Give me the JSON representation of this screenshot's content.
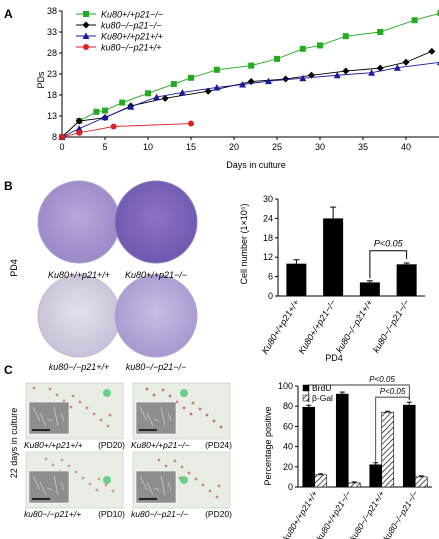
{
  "panels": {
    "A": {
      "letter": "A",
      "chart_data": {
        "type": "line",
        "xlabel": "Days in culture",
        "ylabel": "PDs",
        "xlim": [
          0,
          45
        ],
        "ylim": [
          8,
          38
        ],
        "xticks": [
          "0",
          "5",
          "10",
          "15",
          "20",
          "25",
          "30",
          "35",
          "40",
          "45"
        ],
        "yticks": [
          "8",
          "13",
          "18",
          "23",
          "28",
          "33",
          "38"
        ],
        "legend_position": "top-left",
        "series": [
          {
            "name": "Ku80+/+p21−/−",
            "color": "#22aa22",
            "marker": "square",
            "x": [
              0,
              2,
              4,
              5,
              7,
              10,
              13,
              15,
              18,
              22,
              25,
              28,
              30,
              33,
              37,
              41,
              44
            ],
            "y": [
              8,
              11.8,
              14,
              14.3,
              16.2,
              18.4,
              20.6,
              22.1,
              24,
              25,
              26.6,
              29,
              29.8,
              32,
              33,
              35.8,
              37.5
            ]
          },
          {
            "name": "ku80−/−p21−/−",
            "color": "#000000",
            "marker": "diamond",
            "x": [
              0,
              2,
              5,
              8,
              12,
              17,
              22,
              26,
              29,
              33,
              37,
              40,
              43
            ],
            "y": [
              8,
              11.8,
              12.6,
              15.4,
              17.2,
              18.9,
              21.2,
              21.8,
              22.7,
              23.7,
              24.4,
              25.8,
              28.4
            ]
          },
          {
            "name": "Ku80+/+p21+/+",
            "color": "#1a1a9a",
            "marker": "triangle",
            "x": [
              0,
              2,
              5,
              8,
              11,
              14,
              18,
              21,
              24,
              28,
              32,
              36,
              39,
              44
            ],
            "y": [
              8,
              10,
              12.7,
              15.2,
              17.5,
              18.6,
              19.8,
              20.5,
              21.3,
              22,
              22.7,
              23.3,
              24.5,
              25.8
            ]
          },
          {
            "name": "ku80−/−p21+/+",
            "color": "#dd2222",
            "marker": "circle",
            "x": [
              0,
              2,
              6,
              15
            ],
            "y": [
              8,
              9,
              10.5,
              11.2
            ]
          }
        ]
      }
    },
    "B": {
      "letter": "B",
      "row_label": "PD4",
      "dishes": [
        {
          "label": "Ku80+/+p21+/+"
        },
        {
          "label": "Ku80+/+p21−/−"
        },
        {
          "label": "ku80−/−p21+/+"
        },
        {
          "label": "ku80−/−p21−/−"
        }
      ],
      "chart_data": {
        "type": "bar",
        "ylabel": "Cell number (1×10⁵)",
        "xlabel": "PD4",
        "ylim": [
          0,
          30
        ],
        "yticks": [
          "0",
          "6",
          "12",
          "18",
          "24",
          "30"
        ],
        "categories": [
          "Ku80+/+p21+/+",
          "Ku80+/+p21−/−",
          "ku80−/−p21+/+",
          "ku80−/−p21−/−"
        ],
        "values": [
          10,
          24,
          4.2,
          9.8
        ],
        "errors": [
          1.2,
          3.5,
          0.5,
          0.4
        ],
        "significance": {
          "between": [
            2,
            3
          ],
          "label": "P<0.05"
        }
      }
    },
    "C": {
      "letter": "C",
      "side_label": "22 days in culture",
      "micrographs": [
        {
          "genotype": "Ku80+/+p21+/+",
          "pd": "(PD20)"
        },
        {
          "genotype": "Ku80+/+p21−/−",
          "pd": "(PD24)"
        },
        {
          "genotype": "ku80−/−p21+/+",
          "pd": "(PD10)"
        },
        {
          "genotype": "ku80−/−p21−/−",
          "pd": "(PD20)"
        }
      ],
      "chart_data": {
        "type": "bar",
        "ylabel": "Percentage positive",
        "ylim": [
          0,
          100
        ],
        "yticks": [
          "0",
          "20",
          "40",
          "60",
          "80",
          "100"
        ],
        "legend_position": "top-left",
        "categories": [
          "ku80+/+p21+/+",
          "ku80+/+p21−/−",
          "ku80−/−p21+/+",
          "ku80−/−p21−/−"
        ],
        "series": [
          {
            "name": "BrdU",
            "fill": "#000000",
            "values": [
              79,
              92,
              22,
              81
            ],
            "errors": [
              2,
              2,
              2,
              3
            ]
          },
          {
            "name": "β-Gal",
            "fill": "hatch",
            "values": [
              12,
              4,
              74,
              10
            ],
            "errors": [
              1,
              1,
              1,
              1
            ]
          }
        ],
        "significance": [
          {
            "between": [
              0,
              3
            ],
            "label": "P<0.05"
          },
          {
            "between": [
              2,
              3
            ],
            "label": "P<0.05"
          }
        ]
      }
    }
  }
}
